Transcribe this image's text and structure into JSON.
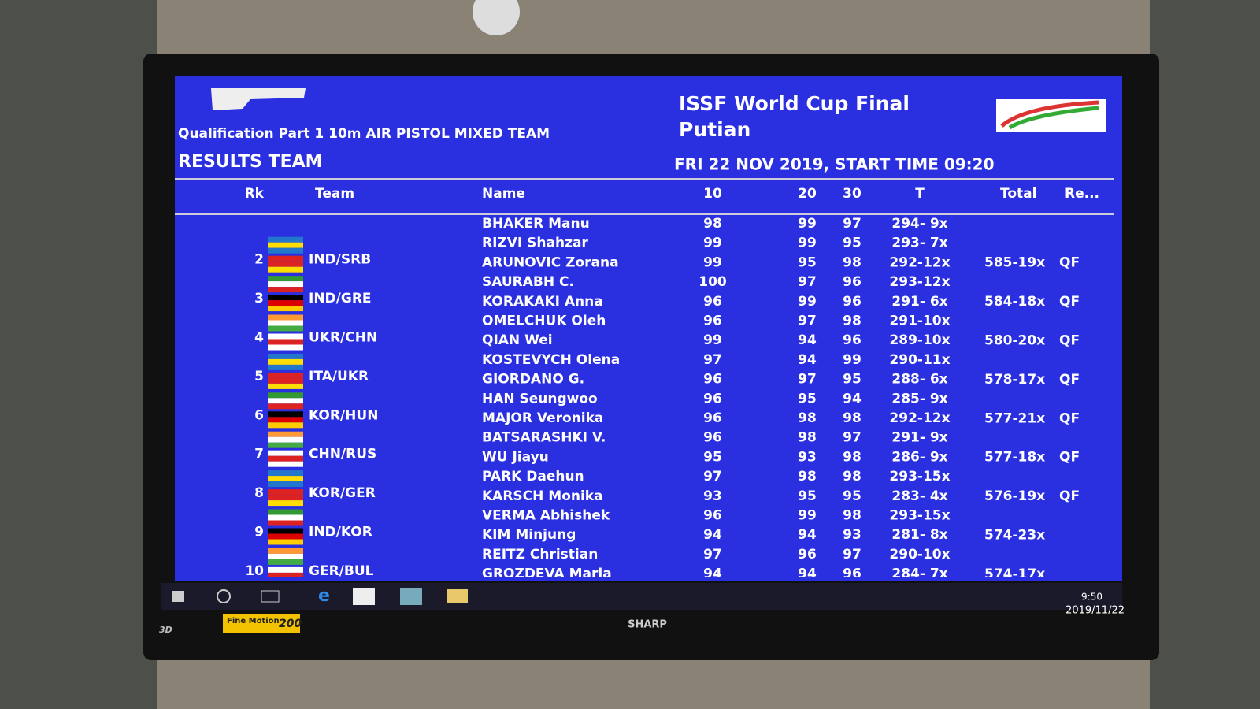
{
  "header": {
    "title_line1": "ISSF World Cup Final",
    "title_line2": "Putian",
    "event": "Qualification Part 1 10m AIR PISTOL MIXED TEAM",
    "section": "RESULTS TEAM",
    "datetime": "FRI 22 NOV 2019, START TIME 09:20"
  },
  "table": {
    "columns": [
      "Rk",
      "Team",
      "Name",
      "10",
      "20",
      "30",
      "T",
      "Total",
      "Re..."
    ],
    "teams": [
      {
        "athletes": [
          [
            "BHAKER Manu",
            98,
            99,
            97,
            "294- 9x"
          ]
        ]
      },
      {
        "rank": 2,
        "team": "IND/SRB",
        "total": "585-19x",
        "remark": "QF",
        "athletes": [
          [
            "RIZVI Shahzar",
            99,
            99,
            95,
            "293- 7x"
          ],
          [
            "ARUNOVIC Zorana",
            99,
            95,
            98,
            "292-12x"
          ]
        ]
      },
      {
        "rank": 3,
        "team": "IND/GRE",
        "total": "584-18x",
        "remark": "QF",
        "athletes": [
          [
            "SAURABH C.",
            100,
            97,
            96,
            "293-12x"
          ],
          [
            "KORAKAKI Anna",
            96,
            99,
            96,
            "291- 6x"
          ]
        ]
      },
      {
        "rank": 4,
        "team": "UKR/CHN",
        "total": "580-20x",
        "remark": "QF",
        "athletes": [
          [
            "OMELCHUK Oleh",
            96,
            97,
            98,
            "291-10x"
          ],
          [
            "QIAN Wei",
            99,
            94,
            96,
            "289-10x"
          ]
        ]
      },
      {
        "rank": 5,
        "team": "ITA/UKR",
        "total": "578-17x",
        "remark": "QF",
        "athletes": [
          [
            "KOSTEVYCH Olena",
            97,
            94,
            99,
            "290-11x"
          ],
          [
            "GIORDANO G.",
            96,
            97,
            95,
            "288- 6x"
          ]
        ]
      },
      {
        "rank": 6,
        "team": "KOR/HUN",
        "total": "577-21x",
        "remark": "QF",
        "athletes": [
          [
            "HAN Seungwoo",
            96,
            95,
            94,
            "285- 9x"
          ],
          [
            "MAJOR Veronika",
            96,
            98,
            98,
            "292-12x"
          ]
        ]
      },
      {
        "rank": 7,
        "team": "CHN/RUS",
        "total": "577-18x",
        "remark": "QF",
        "athletes": [
          [
            "BATSARASHKI V.",
            96,
            98,
            97,
            "291- 9x"
          ],
          [
            "WU Jiayu",
            95,
            93,
            98,
            "286- 9x"
          ]
        ]
      },
      {
        "rank": 8,
        "team": "KOR/GER",
        "total": "576-19x",
        "remark": "QF",
        "athletes": [
          [
            "PARK Daehun",
            97,
            98,
            98,
            "293-15x"
          ],
          [
            "KARSCH Monika",
            93,
            95,
            95,
            "283- 4x"
          ]
        ]
      },
      {
        "rank": 9,
        "team": "IND/KOR",
        "total": "574-23x",
        "athletes": [
          [
            "VERMA Abhishek",
            96,
            99,
            98,
            "293-15x"
          ],
          [
            "KIM Minjung",
            94,
            94,
            93,
            "281- 8x"
          ]
        ]
      },
      {
        "rank": 10,
        "team": "GER/BUL",
        "total": "574-17x",
        "athletes": [
          [
            "REITZ Christian",
            97,
            96,
            97,
            "290-10x"
          ],
          [
            "GROZDEVA Maria",
            94,
            94,
            96,
            "284- 7x"
          ]
        ]
      }
    ]
  },
  "taskbar": {
    "time": "9:50",
    "date": "2019/11/22"
  },
  "bezel": {
    "brand": "SHARP",
    "mode": "3D",
    "sticker": "Fine Motion",
    "sticker_number": "200"
  }
}
